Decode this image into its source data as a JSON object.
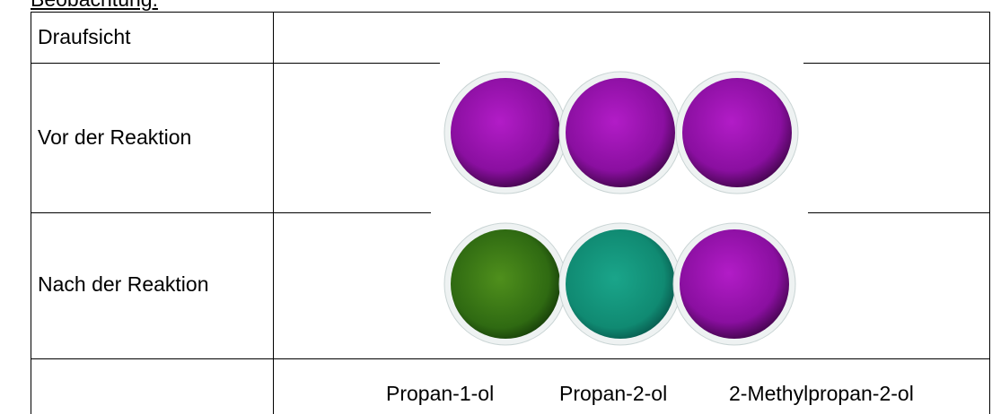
{
  "header": {
    "title": "Beobachtung:"
  },
  "table": {
    "rows": [
      [
        "Draufsicht"
      ],
      [
        "Vor der Reaktion"
      ],
      [
        "Nach der Reaktion"
      ]
    ],
    "substances": [
      "Propan-1-ol",
      "Propan-2-ol",
      "2-Methylpropan-2-ol"
    ]
  }
}
